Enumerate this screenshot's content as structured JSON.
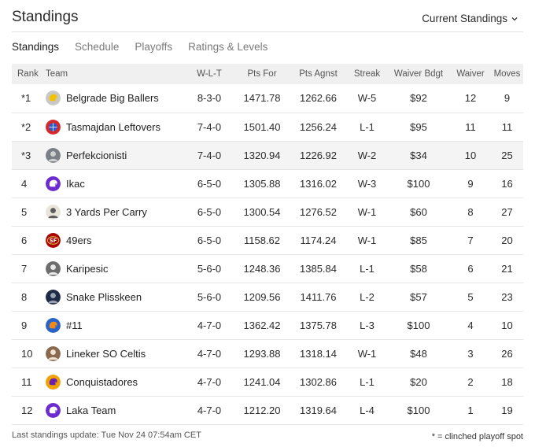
{
  "header": {
    "title": "Standings",
    "view_select": "Current Standings"
  },
  "tabs": [
    {
      "label": "Standings",
      "active": true
    },
    {
      "label": "Schedule",
      "active": false
    },
    {
      "label": "Playoffs",
      "active": false
    },
    {
      "label": "Ratings & Levels",
      "active": false
    }
  ],
  "table": {
    "headers": {
      "rank": "Rank",
      "team": "Team",
      "wlt": "W-L-T",
      "pts_for": "Pts For",
      "pts_agnst": "Pts Agnst",
      "streak": "Streak",
      "waiver_bdgt": "Waiver Bdgt",
      "waiver": "Waiver",
      "moves": "Moves"
    },
    "rows": [
      {
        "rank": "*1",
        "team": "Belgrade Big Ballers",
        "wlt": "8-3-0",
        "pts_for": "1471.78",
        "pts_agnst": "1262.66",
        "streak": "W-5",
        "waiver_bdgt": "$92",
        "waiver": "12",
        "moves": "9",
        "logo": "helmet-yellow-icon",
        "logo_color": "#c8c8c8",
        "logo_accent": "#f2c200"
      },
      {
        "rank": "*2",
        "team": "Tasmajdan Leftovers",
        "wlt": "7-4-0",
        "pts_for": "1501.40",
        "pts_agnst": "1256.24",
        "streak": "L-1",
        "waiver_bdgt": "$95",
        "waiver": "11",
        "moves": "11",
        "logo": "globe-icon",
        "logo_color": "#d62828",
        "logo_accent": "#2a5bd7"
      },
      {
        "rank": "*3",
        "team": "Perfekcionisti",
        "wlt": "7-4-0",
        "pts_for": "1320.94",
        "pts_agnst": "1226.92",
        "streak": "W-2",
        "waiver_bdgt": "$34",
        "waiver": "10",
        "moves": "25",
        "logo": "photo-avatar-icon",
        "logo_color": "#7b7f86",
        "logo_accent": "#cfcfcf"
      },
      {
        "rank": "4",
        "team": "Ikac",
        "wlt": "6-5-0",
        "pts_for": "1305.88",
        "pts_agnst": "1316.02",
        "streak": "W-3",
        "waiver_bdgt": "$100",
        "waiver": "9",
        "moves": "16",
        "logo": "helmet-purple-icon",
        "logo_color": "#6b2bd1",
        "logo_accent": "#ffffff"
      },
      {
        "rank": "5",
        "team": "3 Yards Per Carry",
        "wlt": "6-5-0",
        "pts_for": "1300.54",
        "pts_agnst": "1276.52",
        "streak": "W-1",
        "waiver_bdgt": "$60",
        "waiver": "8",
        "moves": "27",
        "logo": "photo-avatar-icon",
        "logo_color": "#e9e4da",
        "logo_accent": "#5b5b5b"
      },
      {
        "rank": "6",
        "team": "49ers",
        "wlt": "6-5-0",
        "pts_for": "1158.62",
        "pts_agnst": "1174.24",
        "streak": "W-1",
        "waiver_bdgt": "$85",
        "waiver": "7",
        "moves": "20",
        "logo": "49ers-logo-icon",
        "logo_color": "#aa0000",
        "logo_accent": "#ffffff"
      },
      {
        "rank": "7",
        "team": "Karipesic",
        "wlt": "5-6-0",
        "pts_for": "1248.36",
        "pts_agnst": "1385.84",
        "streak": "L-1",
        "waiver_bdgt": "$58",
        "waiver": "6",
        "moves": "21",
        "logo": "photo-avatar-icon",
        "logo_color": "#6d6d6d",
        "logo_accent": "#e8e8e8"
      },
      {
        "rank": "8",
        "team": "Snake Plisskeen",
        "wlt": "5-6-0",
        "pts_for": "1209.56",
        "pts_agnst": "1411.76",
        "streak": "L-2",
        "waiver_bdgt": "$57",
        "waiver": "5",
        "moves": "23",
        "logo": "photo-avatar-icon",
        "logo_color": "#1f2a44",
        "logo_accent": "#9aa3b5"
      },
      {
        "rank": "9",
        "team": "#11",
        "wlt": "4-7-0",
        "pts_for": "1362.42",
        "pts_agnst": "1375.78",
        "streak": "L-3",
        "waiver_bdgt": "$100",
        "waiver": "4",
        "moves": "10",
        "logo": "helmet-blue-icon",
        "logo_color": "#2a63c8",
        "logo_accent": "#f08a1c"
      },
      {
        "rank": "10",
        "team": "Lineker SO Celtis",
        "wlt": "4-7-0",
        "pts_for": "1293.88",
        "pts_agnst": "1318.14",
        "streak": "W-1",
        "waiver_bdgt": "$48",
        "waiver": "3",
        "moves": "26",
        "logo": "photo-avatar-icon",
        "logo_color": "#8a6a4e",
        "logo_accent": "#efe3d4"
      },
      {
        "rank": "11",
        "team": "Conquistadores",
        "wlt": "4-7-0",
        "pts_for": "1241.04",
        "pts_agnst": "1302.86",
        "streak": "L-1",
        "waiver_bdgt": "$20",
        "waiver": "2",
        "moves": "18",
        "logo": "helmet-orange-icon",
        "logo_color": "#f0a202",
        "logo_accent": "#6a1fb0"
      },
      {
        "rank": "12",
        "team": "Laka Team",
        "wlt": "4-7-0",
        "pts_for": "1212.20",
        "pts_agnst": "1319.64",
        "streak": "L-4",
        "waiver_bdgt": "$100",
        "waiver": "1",
        "moves": "19",
        "logo": "helmet-purple-icon",
        "logo_color": "#6b2bd1",
        "logo_accent": "#ffffff"
      }
    ]
  },
  "footer": {
    "last_update": "Last standings update: Tue Nov 24 07:54am CET",
    "legend": "* = clinched playoff spot"
  }
}
